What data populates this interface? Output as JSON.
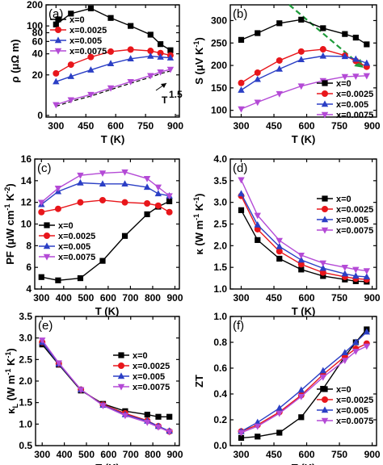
{
  "chart_data": [
    {
      "type": "line",
      "panel_label": "(a)",
      "xlabel": "T (K)",
      "ylabel": "ρ (μΩ m)",
      "xlim": [
        250,
        920
      ],
      "ylim": [
        0,
        200
      ],
      "xticks": [
        300,
        450,
        600,
        750,
        900
      ],
      "yticks": [
        0,
        20,
        40,
        60,
        80,
        100,
        200
      ],
      "y_scale": "log",
      "legend_position": "top-left",
      "series": [
        {
          "name": "x=0",
          "color": "#000000",
          "marker": "square",
          "x": [
            300,
            375,
            475,
            575,
            675,
            775,
            825,
            875
          ],
          "y": [
            105,
            150,
            178,
            130,
            100,
            75,
            55,
            45
          ]
        },
        {
          "name": "x=0.0025",
          "color": "#e8161b",
          "marker": "circle",
          "x": [
            300,
            375,
            475,
            575,
            675,
            775,
            825,
            875
          ],
          "y": [
            21,
            28,
            36,
            43,
            46,
            44,
            41,
            38
          ]
        },
        {
          "name": "x=0.005",
          "color": "#2b3fc5",
          "marker": "triangle",
          "x": [
            300,
            375,
            475,
            575,
            675,
            775,
            825,
            875
          ],
          "y": [
            16,
            19,
            23.5,
            29,
            34,
            37,
            36,
            35
          ]
        },
        {
          "name": "x=0.0075",
          "color": "#b44ad6",
          "marker": "tri-down",
          "x": [
            300,
            375,
            475,
            575,
            675,
            775,
            825,
            875
          ],
          "y": [
            7.5,
            8.8,
            10.5,
            13,
            16,
            19.5,
            22,
            24
          ]
        }
      ],
      "annotations": [
        {
          "text": "T",
          "superscript": "1.5",
          "x": 880,
          "y": 13,
          "style": "dashed power-law guide"
        }
      ]
    },
    {
      "type": "line",
      "panel_label": "(b)",
      "xlabel": "T (K)",
      "ylabel": "S (μV K⁻¹)",
      "xlim": [
        250,
        920
      ],
      "ylim": [
        85,
        335
      ],
      "xticks": [
        300,
        450,
        600,
        750,
        900
      ],
      "yticks": [
        100,
        150,
        200,
        250,
        300
      ],
      "legend_position": "bottom-right",
      "series": [
        {
          "name": "x=0",
          "color": "#000000",
          "marker": "square",
          "x": [
            300,
            375,
            475,
            575,
            675,
            775,
            825,
            875
          ],
          "y": [
            257,
            272,
            294,
            302,
            283,
            270,
            262,
            247
          ]
        },
        {
          "name": "x=0.0025",
          "color": "#e8161b",
          "marker": "circle",
          "x": [
            300,
            375,
            475,
            575,
            675,
            775,
            825,
            875
          ],
          "y": [
            161,
            184,
            211,
            231,
            236,
            222,
            210,
            197
          ]
        },
        {
          "name": "x=0.005",
          "color": "#2b3fc5",
          "marker": "triangle",
          "x": [
            300,
            375,
            475,
            575,
            675,
            775,
            825,
            875
          ],
          "y": [
            145,
            169,
            192,
            213,
            221,
            220,
            214,
            205
          ]
        },
        {
          "name": "x=0.0075",
          "color": "#b44ad6",
          "marker": "tri-down",
          "x": [
            300,
            375,
            475,
            575,
            675,
            775,
            825,
            875
          ],
          "y": [
            103,
            118,
            137,
            154,
            166,
            175,
            176,
            177
          ]
        }
      ],
      "annotations": [
        {
          "style": "green dashed arrow",
          "from": [
            520,
            335
          ],
          "to": [
            860,
            195
          ]
        }
      ]
    },
    {
      "type": "line",
      "panel_label": "(c)",
      "xlabel": "T (K)",
      "ylabel": "PF (μW cm⁻¹ K⁻²)",
      "xlim": [
        270,
        920
      ],
      "ylim": [
        4,
        16
      ],
      "xticks": [
        300,
        400,
        500,
        600,
        700,
        800,
        900
      ],
      "yticks": [
        4,
        6,
        8,
        10,
        12,
        14,
        16
      ],
      "legend_position": "center-left",
      "series": [
        {
          "name": "x=0",
          "color": "#000000",
          "marker": "square",
          "x": [
            300,
            375,
            475,
            575,
            675,
            775,
            825,
            875
          ],
          "y": [
            5.1,
            4.8,
            5.0,
            6.6,
            8.9,
            10.9,
            11.6,
            12.1
          ]
        },
        {
          "name": "x=0.0025",
          "color": "#e8161b",
          "marker": "circle",
          "x": [
            300,
            375,
            475,
            575,
            675,
            775,
            825,
            875
          ],
          "y": [
            11.1,
            11.4,
            12.0,
            12.2,
            12.0,
            11.9,
            11.7,
            11.1
          ]
        },
        {
          "name": "x=0.005",
          "color": "#2b3fc5",
          "marker": "triangle",
          "x": [
            300,
            375,
            475,
            575,
            675,
            775,
            825,
            875
          ],
          "y": [
            11.8,
            13.0,
            13.8,
            13.7,
            13.7,
            13.4,
            12.8,
            12.6
          ]
        },
        {
          "name": "x=0.0075",
          "color": "#b44ad6",
          "marker": "tri-down",
          "x": [
            300,
            375,
            475,
            575,
            675,
            775,
            825,
            875
          ],
          "y": [
            12.0,
            13.3,
            14.5,
            14.7,
            14.8,
            14.2,
            13.4,
            12.6
          ]
        }
      ]
    },
    {
      "type": "line",
      "panel_label": "(d)",
      "xlabel": "T (K)",
      "ylabel": "κ (W m⁻¹ K⁻¹)",
      "xlim": [
        250,
        920
      ],
      "ylim": [
        1.0,
        4.0
      ],
      "xticks": [
        300,
        450,
        600,
        750,
        900
      ],
      "yticks": [
        1.0,
        1.5,
        2.0,
        2.5,
        3.0,
        3.5,
        4.0
      ],
      "legend_position": "top-right",
      "series": [
        {
          "name": "x=0",
          "color": "#000000",
          "marker": "square",
          "x": [
            300,
            375,
            475,
            575,
            675,
            775,
            825,
            875
          ],
          "y": [
            2.82,
            2.13,
            1.7,
            1.45,
            1.3,
            1.22,
            1.18,
            1.17
          ]
        },
        {
          "name": "x=0.0025",
          "color": "#e8161b",
          "marker": "circle",
          "x": [
            300,
            375,
            475,
            575,
            675,
            775,
            825,
            875
          ],
          "y": [
            3.15,
            2.38,
            1.87,
            1.57,
            1.38,
            1.28,
            1.24,
            1.22
          ]
        },
        {
          "name": "x=0.005",
          "color": "#2b3fc5",
          "marker": "triangle",
          "x": [
            300,
            375,
            475,
            575,
            675,
            775,
            825,
            875
          ],
          "y": [
            3.2,
            2.48,
            1.98,
            1.67,
            1.48,
            1.35,
            1.3,
            1.28
          ]
        },
        {
          "name": "x=0.0075",
          "color": "#b44ad6",
          "marker": "tri-down",
          "x": [
            300,
            375,
            475,
            575,
            675,
            775,
            825,
            875
          ],
          "y": [
            3.52,
            2.7,
            2.12,
            1.78,
            1.6,
            1.5,
            1.45,
            1.42
          ]
        }
      ]
    },
    {
      "type": "line",
      "panel_label": "(e)",
      "xlabel": "T (K)",
      "ylabel": "κL (W m⁻¹ K⁻¹)",
      "xlim": [
        270,
        920
      ],
      "ylim": [
        0.5,
        3.5
      ],
      "xticks": [
        300,
        400,
        500,
        600,
        700,
        800,
        900
      ],
      "yticks": [
        0.5,
        1.0,
        1.5,
        2.0,
        2.5,
        3.0,
        3.5
      ],
      "legend_position": "top-right",
      "series": [
        {
          "name": "x=0",
          "color": "#000000",
          "marker": "square",
          "x": [
            300,
            375,
            475,
            575,
            675,
            775,
            825,
            875
          ],
          "y": [
            2.85,
            2.38,
            1.78,
            1.47,
            1.3,
            1.22,
            1.17,
            1.17
          ]
        },
        {
          "name": "x=0.0025",
          "color": "#e8161b",
          "marker": "circle",
          "x": [
            300,
            375,
            475,
            575,
            675,
            775,
            825,
            875
          ],
          "y": [
            2.9,
            2.4,
            1.8,
            1.45,
            1.25,
            1.08,
            0.95,
            0.83
          ]
        },
        {
          "name": "x=0.005",
          "color": "#2b3fc5",
          "marker": "triangle",
          "x": [
            300,
            375,
            475,
            575,
            675,
            775,
            825,
            875
          ],
          "y": [
            2.9,
            2.4,
            1.8,
            1.44,
            1.22,
            1.07,
            0.95,
            0.84
          ]
        },
        {
          "name": "x=0.0075",
          "color": "#b44ad6",
          "marker": "tri-down",
          "x": [
            300,
            375,
            475,
            575,
            675,
            775,
            825,
            875
          ],
          "y": [
            2.95,
            2.42,
            1.8,
            1.43,
            1.2,
            1.04,
            0.93,
            0.82
          ]
        }
      ]
    },
    {
      "type": "line",
      "panel_label": "(f)",
      "xlabel": "T (K)",
      "ylabel": "ZT",
      "xlim": [
        250,
        920
      ],
      "ylim": [
        0.0,
        1.0
      ],
      "xticks": [
        300,
        450,
        600,
        750,
        900
      ],
      "yticks": [
        0.0,
        0.2,
        0.4,
        0.6,
        0.8,
        1.0
      ],
      "legend_position": "bottom-right",
      "series": [
        {
          "name": "x=0",
          "color": "#000000",
          "marker": "square",
          "x": [
            300,
            375,
            475,
            575,
            675,
            775,
            825,
            875
          ],
          "y": [
            0.06,
            0.07,
            0.1,
            0.22,
            0.44,
            0.69,
            0.8,
            0.9
          ]
        },
        {
          "name": "x=0.0025",
          "color": "#e8161b",
          "marker": "circle",
          "x": [
            300,
            375,
            475,
            575,
            675,
            775,
            825,
            875
          ],
          "y": [
            0.11,
            0.16,
            0.26,
            0.39,
            0.55,
            0.69,
            0.75,
            0.79
          ]
        },
        {
          "name": "x=0.005",
          "color": "#2b3fc5",
          "marker": "triangle",
          "x": [
            300,
            375,
            475,
            575,
            675,
            775,
            825,
            875
          ],
          "y": [
            0.11,
            0.18,
            0.29,
            0.43,
            0.58,
            0.72,
            0.8,
            0.88
          ]
        },
        {
          "name": "x=0.0075",
          "color": "#b44ad6",
          "marker": "tri-down",
          "x": [
            300,
            375,
            475,
            575,
            675,
            775,
            825,
            875
          ],
          "y": [
            0.1,
            0.15,
            0.25,
            0.38,
            0.53,
            0.66,
            0.73,
            0.77
          ]
        }
      ]
    }
  ]
}
